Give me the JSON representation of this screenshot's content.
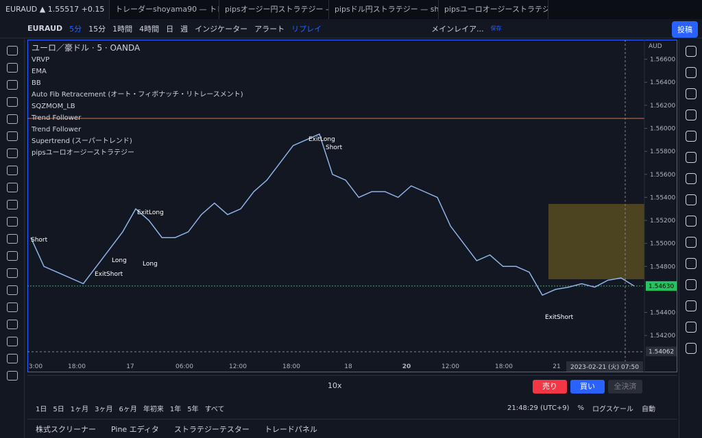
{
  "tabs": [
    "EURAUD ▲ 1.55517 +0.15",
    "トレーダーshoyama90 — トレ",
    "pipsオージー円ストラテジー —",
    "pipsドル円ストラテジー — sha",
    "pipsユーロオージーストラテジ"
  ],
  "toolbar": {
    "symbol": "EURAUD",
    "intervals": [
      "5分",
      "15分",
      "1時間",
      "4時間",
      "日",
      "週"
    ],
    "indicators": "インジケーター",
    "alert": "アラート",
    "replay": "リプレイ",
    "layout": "メインレイア...",
    "save": "保存",
    "post": "投稿"
  },
  "legend": [
    "ユーロ／豪ドル · 5 · OANDA",
    "VRVP",
    "EMA",
    "BB",
    "Auto Fib Retracement (オート・フィボナッチ・リトレースメント)",
    "SQZMOM_LB",
    "Trend Follower",
    "Trend Follower",
    "Supertrend (スーパートレンド)",
    "pipsユーロオージーストラテジー"
  ],
  "signals": [
    "Short",
    "Long",
    "ExitShort",
    "ExitLong",
    "Long",
    "ExitLong",
    "Short",
    "ExitShort"
  ],
  "chart_data": {
    "type": "line",
    "axis_unit": "AUD",
    "values": [
      1.5505,
      1.548,
      1.5475,
      1.547,
      1.5465,
      1.548,
      1.5495,
      1.551,
      1.553,
      1.552,
      1.5505,
      1.5505,
      1.551,
      1.5525,
      1.5535,
      1.5525,
      1.553,
      1.5545,
      1.5555,
      1.557,
      1.5585,
      1.559,
      1.5595,
      1.556,
      1.5555,
      1.554,
      1.5545,
      1.5545,
      1.554,
      1.555,
      1.5545,
      1.554,
      1.5515,
      1.55,
      1.5485,
      1.549,
      1.548,
      1.548,
      1.5475,
      1.5455,
      1.546,
      1.5462,
      1.5465,
      1.5462,
      1.5468,
      1.547,
      1.5463
    ],
    "color": "#8fb4e8",
    "ylim": [
      1.5388,
      1.5677
    ],
    "yticks": [
      {
        "value": 1.566,
        "label": "1.56600"
      },
      {
        "value": 1.564,
        "label": "1.56400"
      },
      {
        "value": 1.562,
        "label": "1.56200"
      },
      {
        "value": 1.56,
        "label": "1.56000"
      },
      {
        "value": 1.558,
        "label": "1.55800"
      },
      {
        "value": 1.556,
        "label": "1.55600"
      },
      {
        "value": 1.554,
        "label": "1.55400"
      },
      {
        "value": 1.552,
        "label": "1.55200"
      },
      {
        "value": 1.55,
        "label": "1.55000"
      },
      {
        "value": 1.548,
        "label": "1.54800"
      },
      {
        "value": 1.544,
        "label": "1.54400"
      },
      {
        "value": 1.542,
        "label": "1.54200"
      }
    ],
    "price_labels": [
      {
        "value": 1.5463,
        "label": "1.54630"
      },
      {
        "value": 1.54062,
        "label": "1.54062"
      }
    ],
    "xticks": [
      "3:00",
      "18:00",
      "17",
      "06:00",
      "12:00",
      "18:00",
      "18",
      "20",
      "12:00",
      "18:00",
      "21"
    ],
    "cursor_date": "2023-02-21 (火)",
    "cursor_time": "07:50"
  },
  "replay_bar": {
    "speed": "10x",
    "sell": "売り",
    "buy": "買い",
    "close_all": "全決済"
  },
  "ranges": [
    "1日",
    "5日",
    "1ヶ月",
    "3ヶ月",
    "6ヶ月",
    "年初来",
    "1年",
    "5年",
    "すべて"
  ],
  "status": {
    "clock": "21:48:29 (UTC+9)",
    "percent": "%",
    "log": "ログスケール",
    "auto": "自動"
  },
  "footer": [
    "株式スクリーナー",
    "Pine エディタ",
    "ストラテジーテスター",
    "トレードパネル"
  ]
}
